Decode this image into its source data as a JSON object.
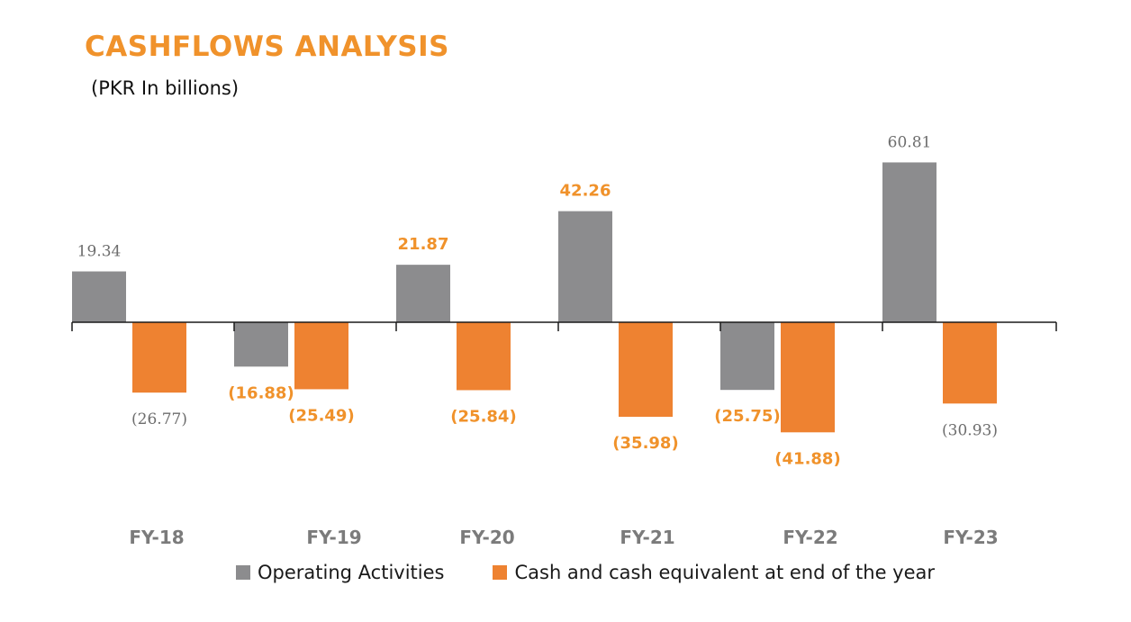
{
  "colors": {
    "operating": "#8c8c8e",
    "cash": "#ee8231",
    "title": "#f0922b",
    "axis": "#1a1a1a"
  },
  "chart_data": {
    "type": "bar",
    "title": "CASHFLOWS ANALYSIS",
    "subtitle": "(PKR In billions)",
    "categories": [
      "FY-18",
      "FY-19",
      "FY-20",
      "FY-21",
      "FY-22",
      "FY-23"
    ],
    "series": [
      {
        "name": "Operating Activities",
        "values": [
          19.34,
          -16.88,
          21.87,
          42.26,
          -25.75,
          60.81
        ],
        "labels": [
          "19.34",
          "(16.88)",
          "21.87",
          "42.26",
          "(25.75)",
          "60.81"
        ],
        "label_styles": [
          "plain",
          "accent",
          "accent",
          "accent",
          "accent",
          "plain"
        ]
      },
      {
        "name": "Cash and cash equivalent at end of the year",
        "values": [
          -26.77,
          -25.49,
          -25.84,
          -35.98,
          -41.88,
          -30.93
        ],
        "labels": [
          "(26.77)",
          "(25.49)",
          "(25.84)",
          "(35.98)",
          "(41.88)",
          "(30.93)"
        ],
        "label_styles": [
          "plain",
          "accent",
          "accent",
          "accent",
          "accent",
          "plain"
        ]
      }
    ],
    "ylim": [
      -60,
      70
    ],
    "grid": false,
    "legend": "bottom"
  }
}
